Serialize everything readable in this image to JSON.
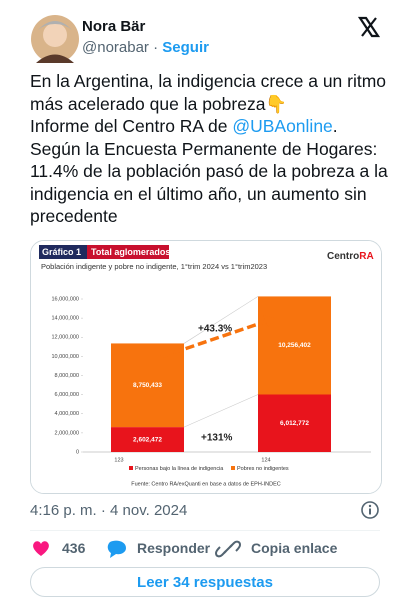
{
  "user": {
    "name": "Nora Bär",
    "handle": "@norabar",
    "follow": "Seguir"
  },
  "tweet": {
    "text_parts": [
      "En la Argentina, la indigencia crece a un ritmo más acelerado que la pobreza👇\nInforme del Centro RA de ",
      "@UBAonline",
      ".\nSegún la Encuesta Permanente de Hogares:  11.4% de la población pasó de la pobreza a la indigencia en el último año, un aumento sin precedente"
    ],
    "timestamp": "4:16 p. m. · 4 nov. 2024",
    "likes": "436",
    "reply": "Responder",
    "copy_link": "Copia enlace",
    "read_replies": "Leer 34 respuestas"
  },
  "chart_data": {
    "type": "bar",
    "stacked": true,
    "title": "Gráfico 1",
    "title_tag": "Total aglomerados",
    "subtitle": "Población indigente y pobre no indigente, 1°trim 2024 vs 1°trim2023",
    "logo": [
      "Centro",
      "RA"
    ],
    "categories": [
      "123",
      "124"
    ],
    "series": [
      {
        "name": "Personas bajo la línea de indigencia",
        "color": "#e8141c",
        "values": [
          2602472,
          6012772
        ],
        "value_labels": [
          "2,602,472",
          "6,012,772"
        ]
      },
      {
        "name": "Pobres no indigentes",
        "color": "#f7730e",
        "values": [
          8750433,
          10256402
        ],
        "value_labels": [
          "8,750,433",
          "10,256,402"
        ]
      }
    ],
    "ylim": [
      0,
      16000000
    ],
    "yticks": [
      {
        "value": 0,
        "label": "0"
      },
      {
        "value": 2000000,
        "label": "2,000,000"
      },
      {
        "value": 4000000,
        "label": "4,000,000"
      },
      {
        "value": 6000000,
        "label": "6,000,000"
      },
      {
        "value": 8000000,
        "label": "8,000,000"
      },
      {
        "value": 10000000,
        "label": "10,000,000"
      },
      {
        "value": 12000000,
        "label": "12,000,000"
      },
      {
        "value": 14000000,
        "label": "14,000,000"
      },
      {
        "value": 16000000,
        "label": "16,000,000"
      }
    ],
    "annotations": [
      "+43.3%",
      "+131%"
    ],
    "source": "Fuente: Centro RA/exQuanti en base a datos de EPH-INDEC"
  }
}
